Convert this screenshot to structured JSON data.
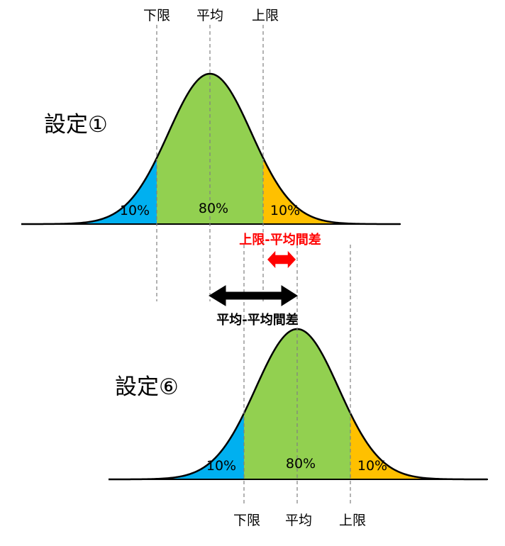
{
  "top": {
    "setting_label": "設定①",
    "lower_label": "下限",
    "mean_label": "平均",
    "upper_label": "上限",
    "left_pct": "10%",
    "center_pct": "80%",
    "right_pct": "10%"
  },
  "bottom": {
    "setting_label": "設定⑥",
    "lower_label": "下限",
    "mean_label": "平均",
    "upper_label": "上限",
    "left_pct": "10%",
    "center_pct": "80%",
    "right_pct": "10%"
  },
  "arrows": {
    "upper_diff_label": "上限-平均間差",
    "mean_diff_label": "平均-平均間差"
  },
  "colors": {
    "tail_left": "#00b0f0",
    "center": "#92d050",
    "tail_right": "#ffc000",
    "upper_diff": "#ff0000",
    "mean_diff": "#000000",
    "guide": "#808080"
  }
}
